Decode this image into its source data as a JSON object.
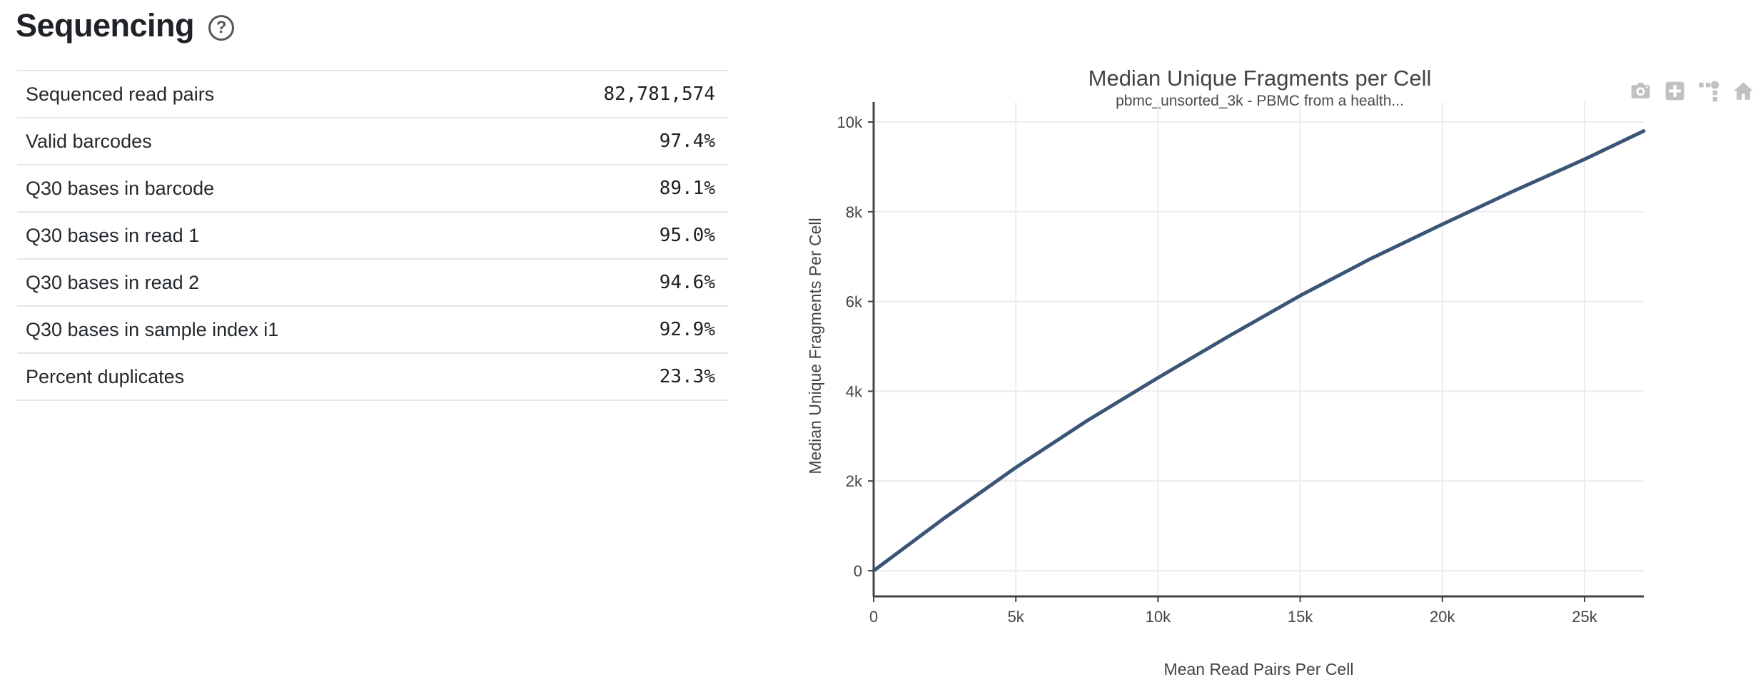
{
  "section": {
    "title": "Sequencing",
    "help_glyph": "?"
  },
  "metrics_table": {
    "rows": [
      {
        "label": "Sequenced read pairs",
        "value": "82,781,574"
      },
      {
        "label": "Valid barcodes",
        "value": "97.4%"
      },
      {
        "label": "Q30 bases in barcode",
        "value": "89.1%"
      },
      {
        "label": "Q30 bases in read 1",
        "value": "95.0%"
      },
      {
        "label": "Q30 bases in read 2",
        "value": "94.6%"
      },
      {
        "label": "Q30 bases in sample index i1",
        "value": "92.9%"
      },
      {
        "label": "Percent duplicates",
        "value": "23.3%"
      }
    ]
  },
  "modebar": {
    "icons": [
      "camera-icon",
      "zoom-in-icon",
      "spike-lines-icon",
      "home-icon"
    ]
  },
  "chart_data": {
    "type": "line",
    "title": "Median Unique Fragments per Cell",
    "subtitle": "pbmc_unsorted_3k - PBMC from a health...",
    "xlabel": "Mean Read Pairs Per Cell",
    "ylabel": "Median Unique Fragments Per Cell",
    "x": [
      0,
      2500,
      5000,
      7500,
      10000,
      12500,
      15000,
      17500,
      20000,
      22500,
      25000,
      27080
    ],
    "y": [
      0,
      1180,
      2300,
      3340,
      4300,
      5230,
      6130,
      6960,
      7720,
      8460,
      9170,
      9800
    ],
    "x_tick_values": [
      0,
      5000,
      10000,
      15000,
      20000,
      25000
    ],
    "y_tick_values": [
      0,
      2000,
      4000,
      6000,
      8000,
      10000
    ],
    "x_tick_labels": [
      "0",
      "5k",
      "10k",
      "15k",
      "20k",
      "25k"
    ],
    "y_tick_labels": [
      "0",
      "2k",
      "4k",
      "6k",
      "8k",
      "10k"
    ],
    "xlim": [
      0,
      27100
    ],
    "ylim": [
      0,
      10000
    ],
    "grid": true,
    "legend": "none",
    "line_color": "#3b5577",
    "grid_color": "#ececee",
    "axis_color": "#444444",
    "tick_label_color": "#444444"
  }
}
